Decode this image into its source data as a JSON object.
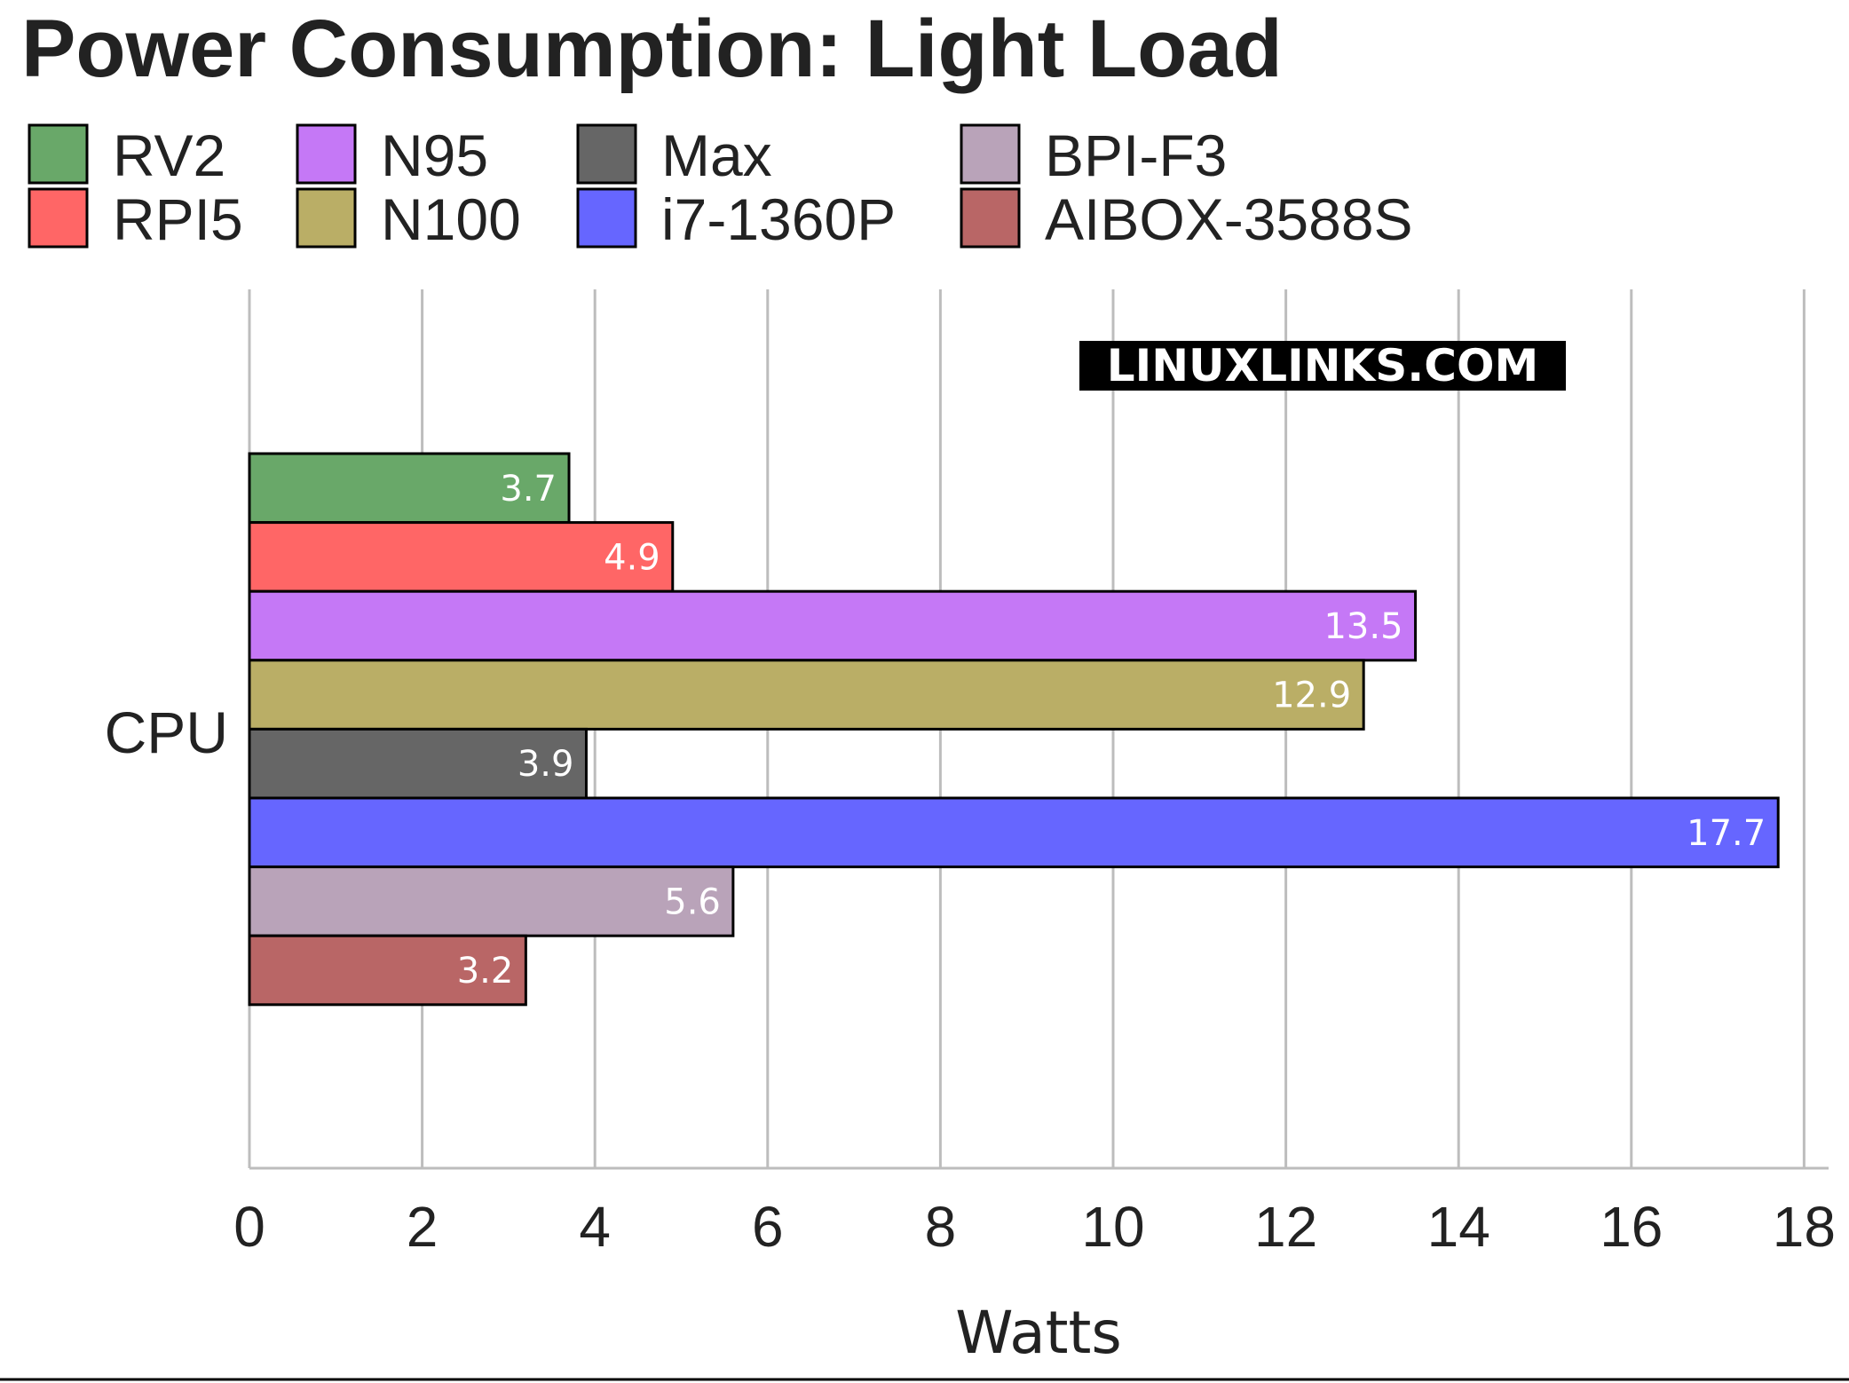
{
  "chart_data": {
    "type": "bar",
    "orientation": "horizontal",
    "title": "Power Consumption: Light Load",
    "xlabel": "Watts",
    "ylabel": "",
    "xlim": [
      0,
      18
    ],
    "x_ticks": [
      "0",
      "2",
      "4",
      "6",
      "8",
      "10",
      "12",
      "14",
      "16",
      "18"
    ],
    "categories": [
      "CPU"
    ],
    "grid": true,
    "legend_position": "top",
    "watermark": "LINUXLINKS.COM",
    "series": [
      {
        "name": "RV2",
        "values": [
          3.7
        ],
        "label": "3.7",
        "color": "#69a869"
      },
      {
        "name": "RPI5",
        "values": [
          4.9
        ],
        "label": "4.9",
        "color": "#ff6666"
      },
      {
        "name": "N95",
        "values": [
          13.5
        ],
        "label": "13.5",
        "color": "#c578f6"
      },
      {
        "name": "N100",
        "values": [
          12.9
        ],
        "label": "12.9",
        "color": "#baae66"
      },
      {
        "name": "Max",
        "values": [
          3.9
        ],
        "label": "3.9",
        "color": "#666666"
      },
      {
        "name": "i7-1360P",
        "values": [
          17.7
        ],
        "label": "17.7",
        "color": "#6666ff"
      },
      {
        "name": "BPI-F3",
        "values": [
          5.6
        ],
        "label": "5.6",
        "color": "#b9a3b9"
      },
      {
        "name": "AIBOX-3588S",
        "values": [
          3.2
        ],
        "label": "3.2",
        "color": "#b96666"
      }
    ],
    "legend_columns": [
      [
        "RV2",
        "RPI5"
      ],
      [
        "N95",
        "N100"
      ],
      [
        "Max",
        "i7-1360P"
      ],
      [
        "BPI-F3",
        "AIBOX-3588S"
      ]
    ]
  }
}
